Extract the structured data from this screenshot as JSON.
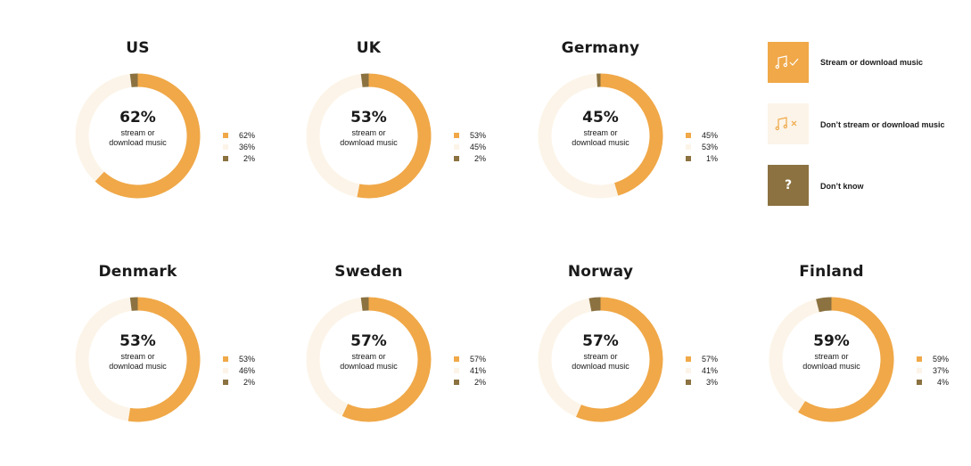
{
  "colors": {
    "stream": "#F0A848",
    "dont_stream": "#FCF4E8",
    "dont_know": "#8B7240"
  },
  "legend": {
    "items": [
      {
        "label": "Stream or download music",
        "icon": "music-note-check-icon"
      },
      {
        "label": "Don’t stream or download music",
        "icon": "music-note-cross-icon"
      },
      {
        "label": "Don’t know",
        "icon": "question-mark-icon",
        "glyph": "?"
      }
    ]
  },
  "chart_data": [
    {
      "type": "pie",
      "title": "US",
      "center_value": "62%",
      "center_label_1": "stream or",
      "center_label_2": "download music",
      "values": [
        62,
        36,
        2
      ],
      "labels": [
        "62%",
        "36%",
        "2%"
      ]
    },
    {
      "type": "pie",
      "title": "UK",
      "center_value": "53%",
      "center_label_1": "stream or",
      "center_label_2": "download music",
      "values": [
        53,
        45,
        2
      ],
      "labels": [
        "53%",
        "45%",
        "2%"
      ]
    },
    {
      "type": "pie",
      "title": "Germany",
      "center_value": "45%",
      "center_label_1": "stream or",
      "center_label_2": "download music",
      "values": [
        45,
        53,
        1
      ],
      "labels": [
        "45%",
        "53%",
        "1%"
      ]
    },
    {
      "type": "pie",
      "title": "Denmark",
      "center_value": "53%",
      "center_label_1": "stream or",
      "center_label_2": "download music",
      "values": [
        53,
        46,
        2
      ],
      "labels": [
        "53%",
        "46%",
        "2%"
      ]
    },
    {
      "type": "pie",
      "title": "Sweden",
      "center_value": "57%",
      "center_label_1": "stream or",
      "center_label_2": "download music",
      "values": [
        57,
        41,
        2
      ],
      "labels": [
        "57%",
        "41%",
        "2%"
      ]
    },
    {
      "type": "pie",
      "title": "Norway",
      "center_value": "57%",
      "center_label_1": "stream or",
      "center_label_2": "download music",
      "values": [
        57,
        41,
        3
      ],
      "labels": [
        "57%",
        "41%",
        "3%"
      ]
    },
    {
      "type": "pie",
      "title": "Finland",
      "center_value": "59%",
      "center_label_1": "stream or",
      "center_label_2": "download music",
      "values": [
        59,
        37,
        4
      ],
      "labels": [
        "59%",
        "37%",
        "4%"
      ]
    }
  ]
}
